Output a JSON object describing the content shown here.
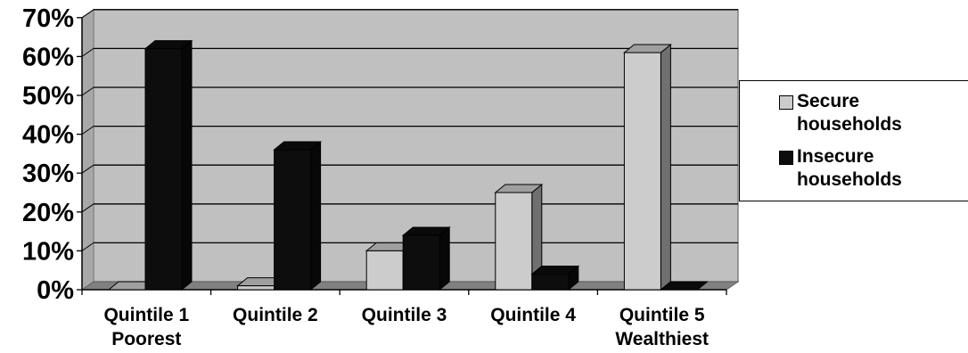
{
  "chart_data": {
    "type": "bar",
    "categories": [
      "Quintile 1\nPoorest",
      "Quintile 2",
      "Quintile 3",
      "Quintile 4",
      "Quintile 5\nWealthiest"
    ],
    "series": [
      {
        "name": "Secure households",
        "values": [
          0,
          1,
          10,
          25,
          61
        ],
        "color": "#cccccc"
      },
      {
        "name": "Insecure households",
        "values": [
          62,
          36,
          14,
          4,
          0
        ],
        "color": "#0d0d0d"
      }
    ],
    "y_ticks": [
      "0%",
      "10%",
      "20%",
      "30%",
      "40%",
      "50%",
      "60%",
      "70%"
    ],
    "ylim": [
      0,
      70
    ],
    "y_unit": "%",
    "grid": true,
    "style": "3d-columns",
    "plot_wall_color": "#c0c0c0",
    "legend_position": "right"
  },
  "legend": {
    "secure": "Secure\nhouseholds",
    "insecure": "Insecure\nhouseholds"
  }
}
